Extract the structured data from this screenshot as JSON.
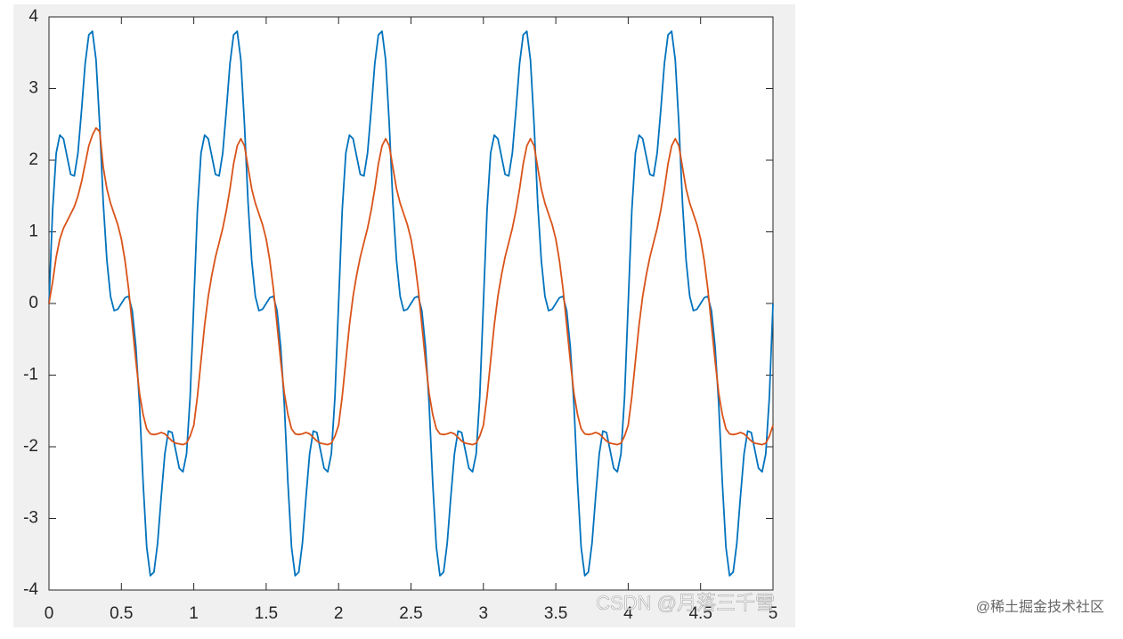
{
  "chart_data": {
    "type": "line",
    "x": [
      0,
      0.025,
      0.05,
      0.075,
      0.1,
      0.125,
      0.15,
      0.175,
      0.2,
      0.225,
      0.25,
      0.275,
      0.3,
      0.325,
      0.35,
      0.375,
      0.4,
      0.425,
      0.45,
      0.475,
      0.5,
      0.525,
      0.55,
      0.575,
      0.6,
      0.625,
      0.65,
      0.675,
      0.7,
      0.725,
      0.75,
      0.775,
      0.8,
      0.825,
      0.85,
      0.875,
      0.9,
      0.925,
      0.95,
      0.975,
      1,
      1.025,
      1.05,
      1.075,
      1.1,
      1.125,
      1.15,
      1.175,
      1.2,
      1.225,
      1.25,
      1.275,
      1.3,
      1.325,
      1.35,
      1.375,
      1.4,
      1.425,
      1.45,
      1.475,
      1.5,
      1.525,
      1.55,
      1.575,
      1.6,
      1.625,
      1.65,
      1.675,
      1.7,
      1.725,
      1.75,
      1.775,
      1.8,
      1.825,
      1.85,
      1.875,
      1.9,
      1.925,
      1.95,
      1.975,
      2,
      2.025,
      2.05,
      2.075,
      2.1,
      2.125,
      2.15,
      2.175,
      2.2,
      2.225,
      2.25,
      2.275,
      2.3,
      2.325,
      2.35,
      2.375,
      2.4,
      2.425,
      2.45,
      2.475,
      2.5,
      2.525,
      2.55,
      2.575,
      2.6,
      2.625,
      2.65,
      2.675,
      2.7,
      2.725,
      2.75,
      2.775,
      2.8,
      2.825,
      2.85,
      2.875,
      2.9,
      2.925,
      2.95,
      2.975,
      3,
      3.025,
      3.05,
      3.075,
      3.1,
      3.125,
      3.15,
      3.175,
      3.2,
      3.225,
      3.25,
      3.275,
      3.3,
      3.325,
      3.35,
      3.375,
      3.4,
      3.425,
      3.45,
      3.475,
      3.5,
      3.525,
      3.55,
      3.575,
      3.6,
      3.625,
      3.65,
      3.675,
      3.7,
      3.725,
      3.75,
      3.775,
      3.8,
      3.825,
      3.85,
      3.875,
      3.9,
      3.925,
      3.95,
      3.975,
      4,
      4.025,
      4.05,
      4.075,
      4.1,
      4.125,
      4.15,
      4.175,
      4.2,
      4.225,
      4.25,
      4.275,
      4.3,
      4.325,
      4.35,
      4.375,
      4.4,
      4.425,
      4.45,
      4.475,
      4.5,
      4.525,
      4.55,
      4.575,
      4.6,
      4.625,
      4.65,
      4.675,
      4.7,
      4.725,
      4.75,
      4.775,
      4.8,
      4.825,
      4.85,
      4.875,
      4.9,
      4.925,
      4.95,
      4.975,
      5
    ],
    "series": [
      {
        "color": "#0072bd",
        "values": [
          0,
          1.3,
          2.1,
          2.35,
          2.3,
          2.05,
          1.8,
          1.78,
          2.1,
          2.7,
          3.35,
          3.75,
          3.8,
          3.4,
          2.5,
          1.4,
          0.6,
          0.1,
          -0.1,
          -0.08,
          0,
          0.08,
          0.1,
          -0.1,
          -0.6,
          -1.4,
          -2.5,
          -3.4,
          -3.8,
          -3.75,
          -3.35,
          -2.7,
          -2.1,
          -1.78,
          -1.8,
          -2.05,
          -2.3,
          -2.35,
          -2.1,
          -1.3,
          0,
          1.3,
          2.1,
          2.35,
          2.3,
          2.05,
          1.8,
          1.78,
          2.1,
          2.7,
          3.35,
          3.75,
          3.8,
          3.4,
          2.5,
          1.4,
          0.6,
          0.1,
          -0.1,
          -0.08,
          0,
          0.08,
          0.1,
          -0.1,
          -0.6,
          -1.4,
          -2.5,
          -3.4,
          -3.8,
          -3.75,
          -3.35,
          -2.7,
          -2.1,
          -1.78,
          -1.8,
          -2.05,
          -2.3,
          -2.35,
          -2.1,
          -1.3,
          0,
          1.3,
          2.1,
          2.35,
          2.3,
          2.05,
          1.8,
          1.78,
          2.1,
          2.7,
          3.35,
          3.75,
          3.8,
          3.4,
          2.5,
          1.4,
          0.6,
          0.1,
          -0.1,
          -0.08,
          0,
          0.08,
          0.1,
          -0.1,
          -0.6,
          -1.4,
          -2.5,
          -3.4,
          -3.8,
          -3.75,
          -3.35,
          -2.7,
          -2.1,
          -1.78,
          -1.8,
          -2.05,
          -2.3,
          -2.35,
          -2.1,
          -1.3,
          0,
          1.3,
          2.1,
          2.35,
          2.3,
          2.05,
          1.8,
          1.78,
          2.1,
          2.7,
          3.35,
          3.75,
          3.8,
          3.4,
          2.5,
          1.4,
          0.6,
          0.1,
          -0.1,
          -0.08,
          0,
          0.08,
          0.1,
          -0.1,
          -0.6,
          -1.4,
          -2.5,
          -3.4,
          -3.8,
          -3.75,
          -3.35,
          -2.7,
          -2.1,
          -1.78,
          -1.8,
          -2.05,
          -2.3,
          -2.35,
          -2.1,
          -1.3,
          0,
          1.3,
          2.1,
          2.35,
          2.3,
          2.05,
          1.8,
          1.78,
          2.1,
          2.7,
          3.35,
          3.75,
          3.8,
          3.4,
          2.5,
          1.4,
          0.6,
          0.1,
          -0.1,
          -0.08,
          0,
          0.08,
          0.1,
          -0.1,
          -0.6,
          -1.4,
          -2.5,
          -3.4,
          -3.8,
          -3.75,
          -3.35,
          -2.7,
          -2.1,
          -1.78,
          -1.8,
          -2.05,
          -2.3,
          -2.35,
          -2.1,
          -1.3,
          0
        ]
      },
      {
        "color": "#d95319",
        "values": [
          0,
          0.3,
          0.65,
          0.9,
          1.05,
          1.15,
          1.25,
          1.35,
          1.5,
          1.7,
          1.95,
          2.2,
          2.35,
          2.45,
          2.4,
          1.9,
          1.6,
          1.4,
          1.25,
          1.1,
          0.9,
          0.6,
          0.2,
          -0.3,
          -0.8,
          -1.25,
          -1.55,
          -1.75,
          -1.82,
          -1.83,
          -1.82,
          -1.8,
          -1.82,
          -1.87,
          -1.92,
          -1.95,
          -1.96,
          -1.97,
          -1.95,
          -1.85,
          -1.7,
          -1.3,
          -0.8,
          -0.3,
          0.1,
          0.4,
          0.65,
          0.85,
          1.05,
          1.3,
          1.6,
          1.95,
          2.2,
          2.3,
          2.2,
          1.9,
          1.6,
          1.4,
          1.25,
          1.1,
          0.9,
          0.6,
          0.2,
          -0.3,
          -0.8,
          -1.25,
          -1.55,
          -1.75,
          -1.82,
          -1.83,
          -1.82,
          -1.8,
          -1.82,
          -1.87,
          -1.92,
          -1.95,
          -1.96,
          -1.97,
          -1.95,
          -1.85,
          -1.7,
          -1.3,
          -0.8,
          -0.3,
          0.1,
          0.4,
          0.65,
          0.85,
          1.05,
          1.3,
          1.6,
          1.95,
          2.2,
          2.3,
          2.2,
          1.9,
          1.6,
          1.4,
          1.25,
          1.1,
          0.9,
          0.6,
          0.2,
          -0.3,
          -0.8,
          -1.25,
          -1.55,
          -1.75,
          -1.82,
          -1.83,
          -1.82,
          -1.8,
          -1.82,
          -1.87,
          -1.92,
          -1.95,
          -1.96,
          -1.97,
          -1.95,
          -1.85,
          -1.7,
          -1.3,
          -0.8,
          -0.3,
          0.1,
          0.4,
          0.65,
          0.85,
          1.05,
          1.3,
          1.6,
          1.95,
          2.2,
          2.3,
          2.2,
          1.9,
          1.6,
          1.4,
          1.25,
          1.1,
          0.9,
          0.6,
          0.2,
          -0.3,
          -0.8,
          -1.25,
          -1.55,
          -1.75,
          -1.82,
          -1.83,
          -1.82,
          -1.8,
          -1.82,
          -1.87,
          -1.92,
          -1.95,
          -1.96,
          -1.97,
          -1.95,
          -1.85,
          -1.7,
          -1.3,
          -0.8,
          -0.3,
          0.1,
          0.4,
          0.65,
          0.85,
          1.05,
          1.3,
          1.6,
          1.95,
          2.2,
          2.3,
          2.2,
          1.9,
          1.6,
          1.4,
          1.25,
          1.1,
          0.9,
          0.6,
          0.2,
          -0.3,
          -0.8,
          -1.25,
          -1.55,
          -1.75,
          -1.82,
          -1.83,
          -1.82,
          -1.8,
          -1.82,
          -1.87,
          -1.92,
          -1.95,
          -1.96,
          -1.97,
          -1.95,
          -1.85,
          -1.7
        ]
      }
    ],
    "xlim": [
      0,
      5
    ],
    "xticks": [
      0,
      0.5,
      1,
      1.5,
      2,
      2.5,
      3,
      3.5,
      4,
      4.5,
      5
    ],
    "ylim": [
      -4,
      4
    ],
    "yticks": [
      -4,
      -3,
      -2,
      -1,
      0,
      1,
      2,
      3,
      4
    ],
    "annotations": [
      "CSDN @月落三千雪",
      "@稀土掘金技术社区"
    ]
  }
}
